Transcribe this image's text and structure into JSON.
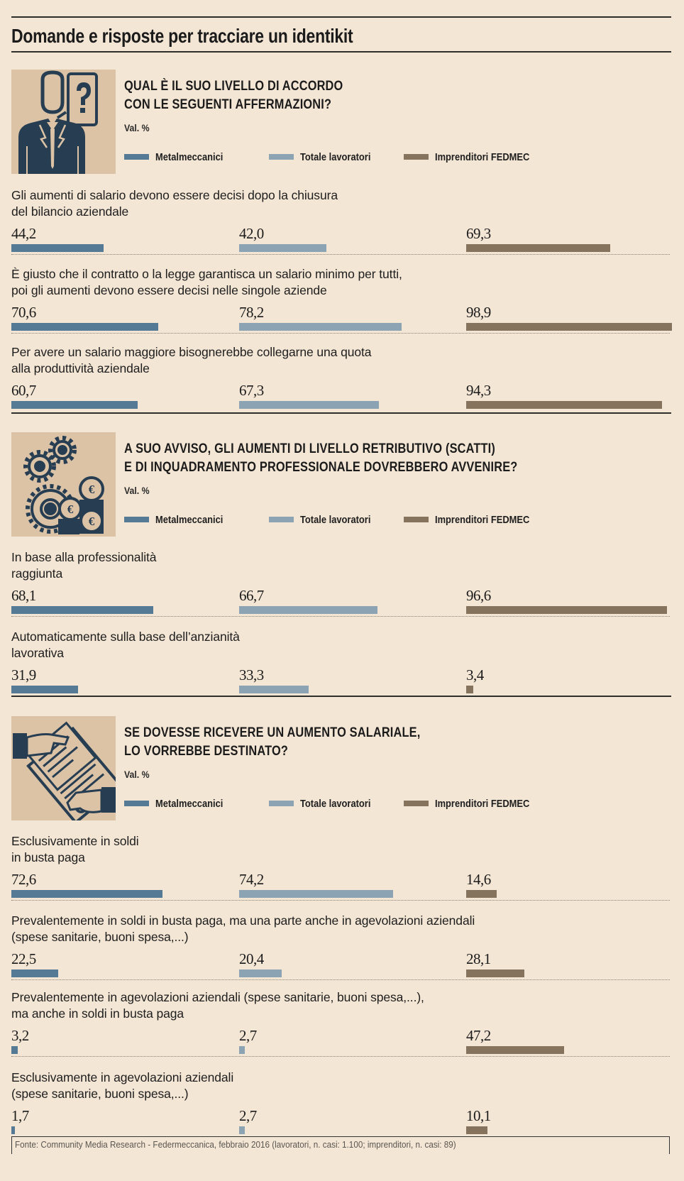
{
  "title": "Domande e risposte per tracciare un identikit",
  "colors": {
    "background": "#f4e6d5",
    "icon_background": "#dcc3a6",
    "icon_ink": "#263d52",
    "metalmeccanici": "#557a96",
    "totale_lavoratori": "#8ba3b3",
    "imprenditori": "#86735d"
  },
  "legend": [
    {
      "label": "Metalmeccanici",
      "color": "#557a96"
    },
    {
      "label": "Totale lavoratori",
      "color": "#8ba3b3"
    },
    {
      "label": "Imprenditori FEDMEC",
      "color": "#86735d"
    }
  ],
  "sections": [
    {
      "icon": "businessman-question-icon",
      "question_lines": [
        "QUAL È IL SUO LIVELLO DI ACCORDO",
        "CON LE SEGUENTI AFFERMAZIONI?"
      ],
      "unit": "Val. %",
      "rows": [
        {
          "label_lines": [
            "Gli aumenti di salario devono essere decisi dopo la chiusura",
            "del bilancio aziendale"
          ],
          "labels": [
            "44,2",
            "42,0",
            "69,3"
          ]
        },
        {
          "label_lines": [
            "È giusto che il contratto o la legge garantisca un salario minimo per tutti,",
            "poi gli aumenti devono essere decisi nelle singole aziende"
          ],
          "labels": [
            "70,6",
            "78,2",
            "98,9"
          ]
        },
        {
          "label_lines": [
            "Per avere un salario maggiore bisognerebbe collegarne una quota",
            "alla produttività aziendale"
          ],
          "labels": [
            "60,7",
            "67,3",
            "94,3"
          ]
        }
      ]
    },
    {
      "icon": "gears-coins-icon",
      "question_lines": [
        "A SUO AVVISO, GLI AUMENTI DI LIVELLO RETRIBUTIVO (SCATTI)",
        "E DI INQUADRAMENTO PROFESSIONALE DOVREBBERO AVVENIRE?"
      ],
      "unit": "Val. %",
      "rows": [
        {
          "label_lines": [
            "In base alla professionalità",
            "raggiunta"
          ],
          "labels": [
            "68,1",
            "66,7",
            "96,6"
          ]
        },
        {
          "label_lines": [
            "Automaticamente sulla base dell’anzianità",
            "lavorativa"
          ],
          "labels": [
            "31,9",
            "33,3",
            "3,4"
          ]
        }
      ]
    },
    {
      "icon": "contract-handshake-icon",
      "question_lines": [
        "SE DOVESSE RICEVERE UN AUMENTO SALARIALE,",
        "LO VORREBBE DESTINATO?"
      ],
      "unit": "Val. %",
      "rows": [
        {
          "label_lines": [
            "Esclusivamente in soldi",
            "in busta paga"
          ],
          "labels": [
            "72,6",
            "74,2",
            "14,6"
          ]
        },
        {
          "label_lines": [
            "Prevalentemente in soldi in busta paga, ma una parte anche in agevolazioni aziendali",
            "(spese sanitarie, buoni spesa,...)"
          ],
          "labels": [
            "22,5",
            "20,4",
            "28,1"
          ]
        },
        {
          "label_lines": [
            "Prevalentemente in agevolazioni aziendali (spese sanitarie, buoni spesa,...),",
            "ma anche in soldi in busta paga"
          ],
          "labels": [
            "3,2",
            "2,7",
            "47,2"
          ]
        },
        {
          "label_lines": [
            "Esclusivamente in agevolazioni aziendali",
            "(spese sanitarie, buoni spesa,...)"
          ],
          "labels": [
            "1,7",
            "2,7",
            "10,1"
          ]
        }
      ]
    }
  ],
  "footer": "Fonte: Community Media Research - Federmeccanica, febbraio 2016 (lavoratori, n. casi: 1.100; imprenditori, n. casi: 89)",
  "chart_data": [
    {
      "type": "bar",
      "title": "QUAL È IL SUO LIVELLO DI ACCORDO CON LE SEGUENTI AFFERMAZIONI?",
      "ylabel": "Val. %",
      "xlim": [
        0,
        100
      ],
      "categories": [
        "Gli aumenti di salario devono essere decisi dopo la chiusura del bilancio aziendale",
        "È giusto che il contratto o la legge garantisca un salario minimo per tutti, poi gli aumenti devono essere decisi nelle singole aziende",
        "Per avere un salario maggiore bisognerebbe collegarne una quota alla produttività aziendale"
      ],
      "series": [
        {
          "name": "Metalmeccanici",
          "values": [
            44.2,
            70.6,
            60.7
          ]
        },
        {
          "name": "Totale lavoratori",
          "values": [
            42.0,
            78.2,
            67.3
          ]
        },
        {
          "name": "Imprenditori FEDMEC",
          "values": [
            69.3,
            98.9,
            94.3
          ]
        }
      ]
    },
    {
      "type": "bar",
      "title": "A SUO AVVISO, GLI AUMENTI DI LIVELLO RETRIBUTIVO (SCATTI) E DI INQUADRAMENTO PROFESSIONALE DOVREBBERO AVVENIRE?",
      "ylabel": "Val. %",
      "xlim": [
        0,
        100
      ],
      "categories": [
        "In base alla professionalità raggiunta",
        "Automaticamente sulla base dell’anzianità lavorativa"
      ],
      "series": [
        {
          "name": "Metalmeccanici",
          "values": [
            68.1,
            31.9
          ]
        },
        {
          "name": "Totale lavoratori",
          "values": [
            66.7,
            33.3
          ]
        },
        {
          "name": "Imprenditori FEDMEC",
          "values": [
            96.6,
            3.4
          ]
        }
      ]
    },
    {
      "type": "bar",
      "title": "SE DOVESSE RICEVERE UN AUMENTO SALARIALE, LO VORREBBE DESTINATO?",
      "ylabel": "Val. %",
      "xlim": [
        0,
        100
      ],
      "categories": [
        "Esclusivamente in soldi in busta paga",
        "Prevalentemente in soldi in busta paga, ma una parte anche in agevolazioni aziendali (spese sanitarie, buoni spesa,...)",
        "Prevalentemente in agevolazioni aziendali (spese sanitarie, buoni spesa,...), ma anche in soldi in busta paga",
        "Esclusivamente in agevolazioni aziendali (spese sanitarie, buoni spesa,...)"
      ],
      "series": [
        {
          "name": "Metalmeccanici",
          "values": [
            72.6,
            22.5,
            3.2,
            1.7
          ]
        },
        {
          "name": "Totale lavoratori",
          "values": [
            74.2,
            20.4,
            2.7,
            2.7
          ]
        },
        {
          "name": "Imprenditori FEDMEC",
          "values": [
            14.6,
            28.1,
            47.2,
            10.1
          ]
        }
      ]
    }
  ]
}
